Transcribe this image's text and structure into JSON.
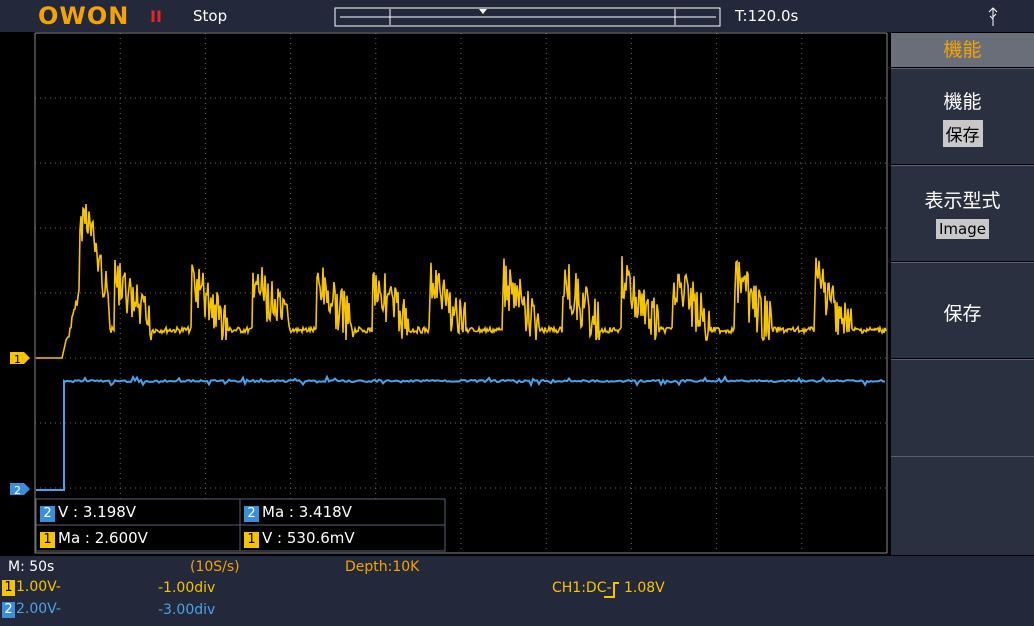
{
  "header": {
    "brand": "OWON",
    "run_icon": "II",
    "status": "Stop",
    "time": "T:120.0s"
  },
  "menu": {
    "title": "機能",
    "items": [
      {
        "label": "機能",
        "value": "保存"
      },
      {
        "label": "表示型式",
        "value": "Image"
      },
      {
        "label": "保存"
      }
    ]
  },
  "channel_markers": [
    "1",
    "2"
  ],
  "measurements": [
    {
      "channel": "2",
      "text": "V : 3.198V"
    },
    {
      "channel": "2",
      "text": "Ma : 3.418V"
    },
    {
      "channel": "1",
      "text": "Ma : 2.600V"
    },
    {
      "channel": "1",
      "text": "V : 530.6mV"
    }
  ],
  "footer": {
    "timebase": "M: 50s",
    "sample_rate": "(10S/s)",
    "depth": "Depth:10K",
    "ch1": {
      "channel": "1",
      "scale": "1.00V-",
      "offset": "-1.00div"
    },
    "ch2": {
      "channel": "2",
      "scale": "2.00V-",
      "offset": "-3.00div"
    },
    "trigger": "CH1:DC-",
    "trigger_level": "1.08V"
  }
}
